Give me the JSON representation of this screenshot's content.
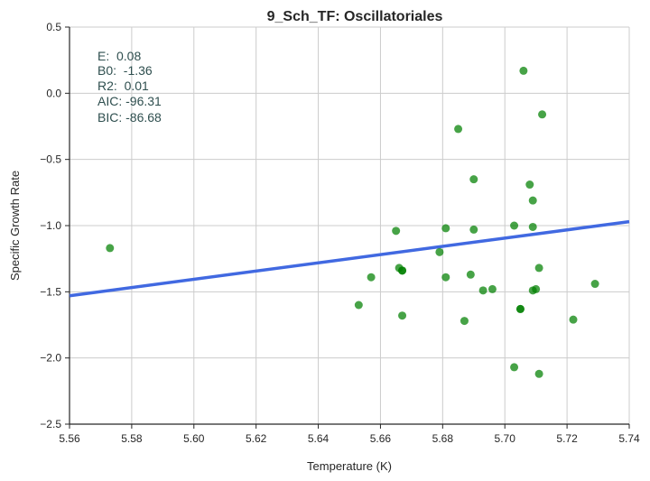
{
  "chart_data": {
    "type": "scatter",
    "title": "9_Sch_TF: Oscillatoriales",
    "xlabel": "Temperature (K)",
    "ylabel": "Specific Growth Rate",
    "xlim": [
      5.56,
      5.74
    ],
    "ylim": [
      -2.5,
      0.5
    ],
    "xticks": [
      "5.56",
      "5.58",
      "5.60",
      "5.62",
      "5.64",
      "5.66",
      "5.68",
      "5.70",
      "5.72",
      "5.74"
    ],
    "yticks": [
      "−2.5",
      "−2.0",
      "−1.5",
      "−1.0",
      "−0.5",
      "0.0",
      "0.5"
    ],
    "grid": true,
    "annotations": [
      "E:  0.08",
      "B0:  -1.36",
      "R2:  0.01",
      "AIC: -96.31",
      "BIC: -86.68"
    ],
    "colors": {
      "points": "#008000",
      "fit_line": "#4169e1",
      "grid": "#cccccc",
      "axis": "#262626"
    },
    "series": [
      {
        "kind": "points",
        "x": [
          5.573,
          5.653,
          5.657,
          5.665,
          5.666,
          5.667,
          5.667,
          5.667,
          5.679,
          5.681,
          5.681,
          5.685,
          5.687,
          5.689,
          5.69,
          5.69,
          5.693,
          5.696,
          5.703,
          5.703,
          5.705,
          5.705,
          5.706,
          5.708,
          5.709,
          5.709,
          5.709,
          5.71,
          5.711,
          5.711,
          5.712,
          5.722,
          5.729
        ],
        "y": [
          -1.17,
          -1.6,
          -1.39,
          -1.04,
          -1.32,
          -1.34,
          -1.34,
          -1.68,
          -1.2,
          -1.39,
          -1.02,
          -0.27,
          -1.72,
          -1.37,
          -1.03,
          -0.65,
          -1.49,
          -1.48,
          -1.0,
          -2.07,
          -1.63,
          -1.63,
          0.17,
          -0.69,
          -1.49,
          -0.81,
          -1.01,
          -1.48,
          -1.32,
          -2.12,
          -0.16,
          -1.71,
          -1.44
        ]
      },
      {
        "kind": "fit-line",
        "x": [
          5.56,
          5.74
        ],
        "y": [
          -1.53,
          -0.97
        ]
      }
    ]
  }
}
